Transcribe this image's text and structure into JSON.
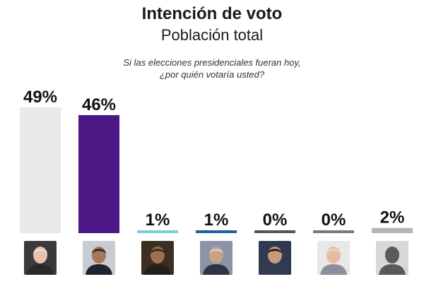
{
  "header": {
    "title": "Intención de voto",
    "subtitle": "Población total",
    "question_line1": "Si las elecciones presidenciales fueran hoy,",
    "question_line2": "¿por quién votaría usted?"
  },
  "chart_data": {
    "type": "bar",
    "title": "Intención de voto",
    "subtitle": "Población total",
    "question": "Si las elecciones presidenciales fueran hoy, ¿por quién votaría usted?",
    "categories": [
      "",
      "",
      "",
      "",
      "",
      "",
      ""
    ],
    "values": [
      49,
      46,
      1,
      1,
      0,
      0,
      2
    ],
    "value_labels": [
      "49%",
      "46%",
      "1%",
      "1%",
      "0%",
      "0%",
      "2%"
    ],
    "colors": [
      "#e9e9e9",
      "#4b1784",
      "#7ccfd9",
      "#1f5fa3",
      "#555555",
      "#7a7a7a",
      "#b5b5b5"
    ],
    "ylim": [
      0,
      49
    ],
    "grid": false,
    "legend": "none",
    "xlabel": "",
    "ylabel": ""
  },
  "candidates": [
    {
      "photo_icon": "candidate-photo-icon",
      "bg": "#3a3a3a",
      "skin": "#e8c2a8",
      "hair": "#e0e0e0",
      "suit": "#2a2a2a"
    },
    {
      "photo_icon": "candidate-photo-icon",
      "bg": "#c8cbd2",
      "skin": "#a87658",
      "hair": "#2a2a2a",
      "suit": "#1e2430"
    },
    {
      "photo_icon": "candidate-photo-icon",
      "bg": "#3c2f22",
      "skin": "#a0704e",
      "hair": "#2b2b2b",
      "suit": "#23201c"
    },
    {
      "photo_icon": "candidate-photo-icon",
      "bg": "#8a94a6",
      "skin": "#c9a184",
      "hair": "#d0d0d0",
      "suit": "#2e3644"
    },
    {
      "photo_icon": "candidate-photo-icon",
      "bg": "#2f3a52",
      "skin": "#c69a7a",
      "hair": "#1e1e1e",
      "suit": "#333c4e"
    },
    {
      "photo_icon": "candidate-photo-icon",
      "bg": "#e8e8e8",
      "skin": "#e6bc9e",
      "hair": "#d9d9d9",
      "suit": "#8a8f99"
    },
    {
      "photo_icon": "silhouette-icon",
      "bg": "#d8d8d8",
      "skin": "#5a5a5a",
      "hair": "#5a5a5a",
      "suit": "#5a5a5a"
    }
  ]
}
